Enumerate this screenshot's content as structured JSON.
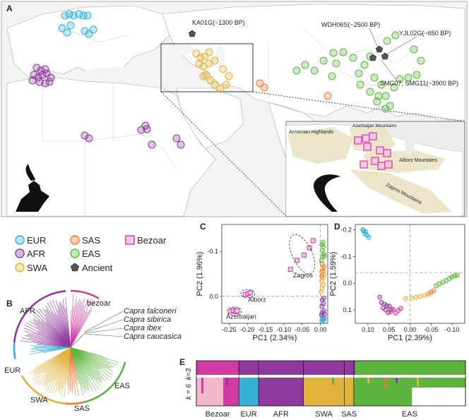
{
  "panels": {
    "A": "A",
    "B": "B",
    "C": "C",
    "D": "D",
    "E": "E"
  },
  "map": {
    "ancient": [
      {
        "label": "KA01G(~1300 BP)"
      },
      {
        "label": "WDH06S(~2500 BP)"
      },
      {
        "label": "YJL02G(~650 BP)"
      },
      {
        "label": "SMG07, SMG11(~3900 BP)"
      }
    ],
    "inset": {
      "regions": [
        "Armenian Highlands",
        "Azerbaijan Mountains",
        "Alborz Mountains",
        "Zagros Mountains"
      ]
    }
  },
  "legend": {
    "items": [
      {
        "label": "EUR",
        "color": "#35b1d6",
        "shape": "circle"
      },
      {
        "label": "SAS",
        "color": "#f07a35",
        "shape": "circle"
      },
      {
        "label": "Bezoar",
        "color": "#d23aa3",
        "shape": "square"
      },
      {
        "label": "AFR",
        "color": "#8e3a9c",
        "shape": "circle"
      },
      {
        "label": "EAS",
        "color": "#5db53f",
        "shape": "circle"
      },
      {
        "label": "SWA",
        "color": "#e0b23a",
        "shape": "circle"
      },
      {
        "label": "Ancient",
        "color": "#555555",
        "shape": "pentagon"
      }
    ]
  },
  "tree": {
    "clades": [
      {
        "label": "AFR",
        "color": "#8e3a9c"
      },
      {
        "label": "bezoar",
        "color": "#d23aa3"
      },
      {
        "label": "EUR",
        "color": "#35b1d6"
      },
      {
        "label": "SWA",
        "color": "#e0b23a"
      },
      {
        "label": "SAS",
        "color": "#f07a35"
      },
      {
        "label": "EAS",
        "color": "#5db53f"
      }
    ],
    "outgroups": [
      {
        "label": "Capra falconeri",
        "color": "#9a7a2e"
      },
      {
        "label": "Capra sibirica",
        "color": "#b0572a"
      },
      {
        "label": "Capra ibex",
        "color": "#3a78c2"
      },
      {
        "label": "Capra caucasica",
        "color": "#d9843a"
      }
    ]
  },
  "chart_data": [
    {
      "type": "scatter",
      "panel": "C",
      "xlabel": "PC1 (2.34%)",
      "ylabel": "PC2 (1.96%)",
      "xlim": [
        -0.27,
        0.02
      ],
      "ylim": [
        -0.16,
        0.06
      ],
      "x_ticks": [
        -0.25,
        -0.2,
        -0.15,
        -0.1,
        -0.05,
        0.0
      ],
      "x_tick_labels": [
        "-0.25",
        "-0.20",
        "-0.15",
        "-0.10",
        "-0.05",
        "0.00"
      ],
      "y_ticks": [
        0.0,
        -0.1
      ],
      "y_tick_labels": [
        "0.0",
        "-0.1"
      ],
      "annotations": [
        "Azerbaijan",
        "Alborz",
        "Zagros"
      ],
      "series": [
        {
          "name": "Bezoar",
          "color": "#d23aa3",
          "marker": "square",
          "points": [
            [
              -0.245,
              0.033
            ],
            [
              -0.238,
              0.031
            ],
            [
              -0.232,
              0.034
            ],
            [
              -0.228,
              0.032
            ],
            [
              -0.206,
              -0.004
            ],
            [
              -0.198,
              -0.006
            ],
            [
              -0.192,
              -0.008
            ],
            [
              -0.082,
              -0.06
            ],
            [
              -0.064,
              -0.08
            ],
            [
              -0.045,
              -0.092
            ],
            [
              -0.03,
              -0.108
            ],
            [
              -0.02,
              -0.124
            ]
          ]
        },
        {
          "name": "EUR",
          "color": "#35b1d6",
          "marker": "circle",
          "points": [
            [
              0.004,
              0.055
            ],
            [
              0.006,
              0.052
            ],
            [
              0.008,
              0.05
            ],
            [
              0.005,
              0.047
            ],
            [
              0.009,
              0.054
            ],
            [
              0.011,
              0.049
            ]
          ]
        },
        {
          "name": "AFR",
          "color": "#8e3a9c",
          "marker": "circle",
          "points": [
            [
              0.003,
              0.041
            ],
            [
              0.006,
              0.036
            ],
            [
              0.01,
              0.032
            ],
            [
              0.004,
              0.022
            ],
            [
              0.008,
              0.016
            ],
            [
              0.005,
              0.008
            ],
            [
              0.009,
              0.004
            ],
            [
              0.011,
              0.04
            ]
          ]
        },
        {
          "name": "SWA",
          "color": "#e0b23a",
          "marker": "circle",
          "points": [
            [
              0.002,
              -0.01
            ],
            [
              0.005,
              -0.018
            ],
            [
              0.008,
              -0.026
            ],
            [
              0.004,
              -0.034
            ],
            [
              0.007,
              -0.041
            ],
            [
              0.01,
              -0.048
            ],
            [
              0.003,
              -0.055
            ],
            [
              0.006,
              -0.062
            ]
          ]
        },
        {
          "name": "SAS",
          "color": "#f07a35",
          "marker": "circle",
          "points": [
            [
              0.004,
              -0.045
            ],
            [
              0.007,
              -0.056
            ],
            [
              0.01,
              -0.066
            ],
            [
              0.005,
              -0.072
            ]
          ]
        },
        {
          "name": "EAS",
          "color": "#5db53f",
          "marker": "circle",
          "points": [
            [
              0.003,
              -0.08
            ],
            [
              0.006,
              -0.088
            ],
            [
              0.009,
              -0.095
            ],
            [
              0.005,
              -0.102
            ],
            [
              0.008,
              -0.11
            ],
            [
              0.011,
              -0.09
            ],
            [
              0.004,
              -0.115
            ],
            [
              0.007,
              -0.12
            ]
          ]
        }
      ]
    },
    {
      "type": "scatter",
      "panel": "D",
      "xlabel": "PC1 (2.39%)",
      "ylabel": "PC2 (1.59%)",
      "xlim": [
        0.13,
        -0.13
      ],
      "ylim": [
        -0.22,
        0.15
      ],
      "x_ticks": [
        0.1,
        0.05,
        0.0,
        -0.05,
        -0.1
      ],
      "x_tick_labels": [
        "0.10",
        "0.05",
        "0.00",
        "-0.05",
        "-0.10"
      ],
      "y_ticks": [
        -0.2,
        -0.1,
        0.0,
        0.1
      ],
      "y_tick_labels": [
        "-0.2",
        "-0.1",
        "0.0",
        "0.1"
      ],
      "series": [
        {
          "name": "EUR",
          "color": "#35b1d6",
          "marker": "circle",
          "points": [
            [
              0.11,
              -0.197
            ],
            [
              0.105,
              -0.192
            ],
            [
              0.108,
              -0.186
            ],
            [
              0.102,
              -0.18
            ],
            [
              0.112,
              -0.2
            ],
            [
              0.098,
              -0.172
            ]
          ]
        },
        {
          "name": "AFR",
          "color": "#8e3a9c",
          "marker": "circle",
          "points": [
            [
              0.072,
              0.052
            ],
            [
              0.068,
              0.072
            ],
            [
              0.064,
              0.092
            ],
            [
              0.061,
              0.078
            ],
            [
              0.058,
              0.1
            ],
            [
              0.055,
              0.084
            ],
            [
              0.052,
              0.11
            ],
            [
              0.049,
              0.086
            ],
            [
              0.045,
              0.098
            ]
          ]
        },
        {
          "name": "Bezoar",
          "color": "#d23aa3",
          "marker": "circle",
          "points": [
            [
              0.046,
              0.106
            ],
            [
              0.04,
              0.098
            ],
            [
              0.034,
              0.112
            ],
            [
              0.028,
              0.102
            ],
            [
              0.022,
              0.094
            ]
          ]
        },
        {
          "name": "SWA",
          "color": "#e0b23a",
          "marker": "circle",
          "points": [
            [
              0.01,
              0.058
            ],
            [
              -0.004,
              0.056
            ],
            [
              -0.014,
              0.053
            ],
            [
              -0.024,
              0.049
            ],
            [
              -0.034,
              0.046
            ]
          ]
        },
        {
          "name": "SAS",
          "color": "#f07a35",
          "marker": "circle",
          "points": [
            [
              -0.044,
              0.04
            ],
            [
              -0.05,
              0.034
            ],
            [
              -0.056,
              0.028
            ]
          ]
        },
        {
          "name": "EAS",
          "color": "#5db53f",
          "marker": "circle",
          "points": [
            [
              -0.062,
              0.01
            ],
            [
              -0.07,
              0.002
            ],
            [
              -0.078,
              -0.004
            ],
            [
              -0.086,
              -0.01
            ],
            [
              -0.094,
              -0.018
            ],
            [
              -0.1,
              -0.024
            ],
            [
              -0.106,
              -0.028
            ],
            [
              -0.112,
              -0.03
            ]
          ]
        }
      ]
    },
    {
      "type": "bar",
      "panel": "E",
      "rows": [
        {
          "label": "k=3",
          "segments": [
            {
              "group": "Bezoar",
              "frac": 0.158,
              "color": "#d23aa3"
            },
            {
              "group": "EUR+AFR",
              "frac": 0.432,
              "color": "#8e3a9c"
            },
            {
              "group": "SWA+SAS+EAS",
              "frac": 0.41,
              "color": "#5db53f"
            }
          ]
        },
        {
          "label": "k=6",
          "segments": [
            {
              "group": "Bezoar",
              "frac": 0.1,
              "color": "#f0b8c9"
            },
            {
              "group": "Bezoar",
              "frac": 0.058,
              "color": "#d23aa3"
            },
            {
              "group": "EUR",
              "frac": 0.073,
              "color": "#35b1d6"
            },
            {
              "group": "AFR",
              "frac": 0.167,
              "color": "#8e3a9c"
            },
            {
              "group": "SWA",
              "frac": 0.152,
              "color": "#e0b23a"
            },
            {
              "group": "SAS",
              "frac": 0.035,
              "color": "#e0b23a"
            },
            {
              "group": "EAS",
              "frac": 0.215,
              "color": "#5db53f"
            }
          ]
        }
      ],
      "group_labels": [
        "Bezoar",
        "EUR",
        "AFR",
        "SWA",
        "SAS",
        "EAS"
      ],
      "row_axis_label_k3": "k=3",
      "row_axis_label_k6": "k = 6"
    }
  ]
}
